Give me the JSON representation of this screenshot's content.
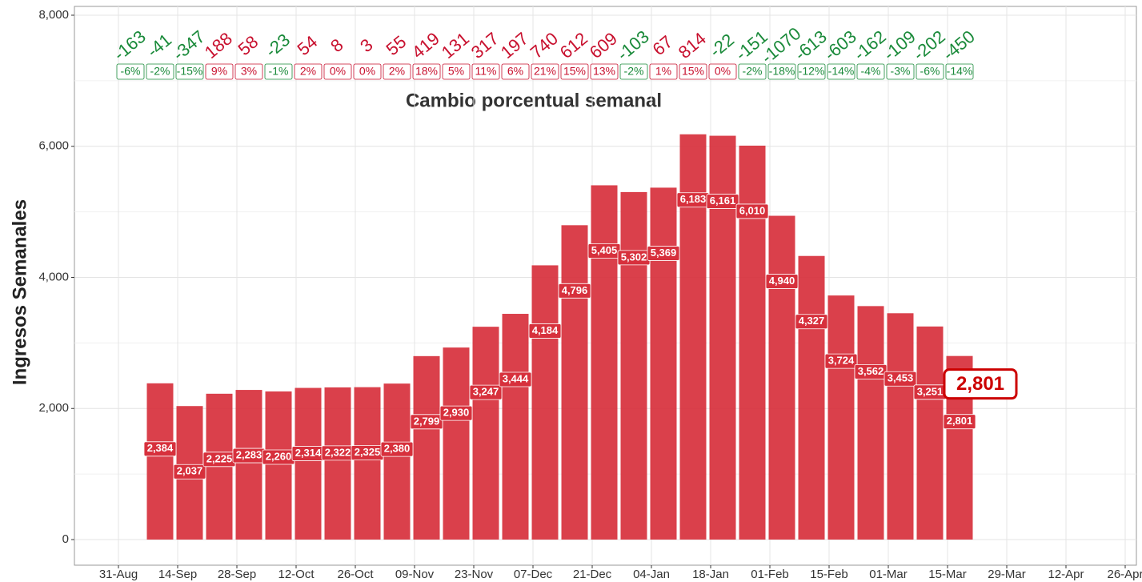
{
  "chart_data": {
    "type": "bar",
    "subtitle": "Cambio porcentual semanal",
    "y_label": "Ingresos Semanales",
    "color": "#d7303c",
    "positive_color": "#c8102e",
    "negative_color": "#1a8a3a",
    "grid": true,
    "categories": [
      null,
      null,
      null,
      null,
      null,
      null,
      null,
      null,
      null,
      null,
      null,
      null,
      null,
      null,
      null,
      null,
      null,
      null,
      null,
      null,
      null,
      null,
      null,
      null,
      null,
      null,
      null,
      null,
      null
    ],
    "values": [
      null,
      2384,
      2037,
      2225,
      2283,
      2260,
      2314,
      2322,
      2325,
      2380,
      2799,
      2930,
      3247,
      3444,
      4184,
      4796,
      5405,
      5302,
      5369,
      6183,
      6161,
      6010,
      4940,
      4327,
      3724,
      3562,
      3453,
      3251,
      2801
    ],
    "value_labels": [
      null,
      "2,384",
      "2,037",
      "2,225",
      "2,283",
      "2,260",
      "2,314",
      "2,322",
      "2,325",
      "2,380",
      "2,799",
      "2,930",
      "3,247",
      "3,444",
      "4,184",
      "4,796",
      "5,405",
      "5,302",
      "5,369",
      "6,183",
      "6,161",
      "6,010",
      "4,940",
      "4,327",
      "3,724",
      "3,562",
      "3,453",
      "3,251",
      "2,801"
    ],
    "changes": [
      -163,
      -41,
      -347,
      188,
      58,
      -23,
      54,
      8,
      3,
      55,
      419,
      131,
      317,
      197,
      740,
      612,
      609,
      -103,
      67,
      814,
      -22,
      -151,
      -1070,
      -613,
      -603,
      -162,
      -109,
      -202,
      -450
    ],
    "pct_changes": [
      -6,
      -2,
      -15,
      9,
      3,
      -1,
      2,
      0,
      0,
      2,
      18,
      5,
      11,
      6,
      21,
      15,
      13,
      -2,
      1,
      15,
      0,
      -2,
      -18,
      -12,
      -14,
      -4,
      -3,
      -6,
      -14
    ],
    "pct_labels": [
      "-6%",
      "-2%",
      "-15%",
      "9%",
      "3%",
      "-1%",
      "2%",
      "0%",
      "0%",
      "2%",
      "18%",
      "5%",
      "11%",
      "6%",
      "21%",
      "15%",
      "13%",
      "-2%",
      "1%",
      "15%",
      "0%",
      "-2%",
      "-18%",
      "-12%",
      "-14%",
      "-4%",
      "-3%",
      "-6%",
      "-14%"
    ],
    "highlight": {
      "value": 2801,
      "label": "2,801"
    },
    "ylim": [
      0,
      8000
    ],
    "yticks": [
      0,
      {
        "value": 2000,
        "label": "2,000"
      },
      {
        "value": 4000,
        "label": "4,000"
      },
      {
        "value": 6000,
        "label": "6,000"
      },
      {
        "value": 8000,
        "label": "8,000"
      }
    ],
    "xticks": [
      "31-Aug",
      "14-Sep",
      "28-Sep",
      "12-Oct",
      "26-Oct",
      "09-Nov",
      "23-Nov",
      "07-Dec",
      "21-Dec",
      "04-Jan",
      "18-Jan",
      "01-Feb",
      "15-Feb",
      "01-Mar",
      "15-Mar",
      "29-Mar",
      "12-Apr",
      "26-Apr"
    ]
  }
}
